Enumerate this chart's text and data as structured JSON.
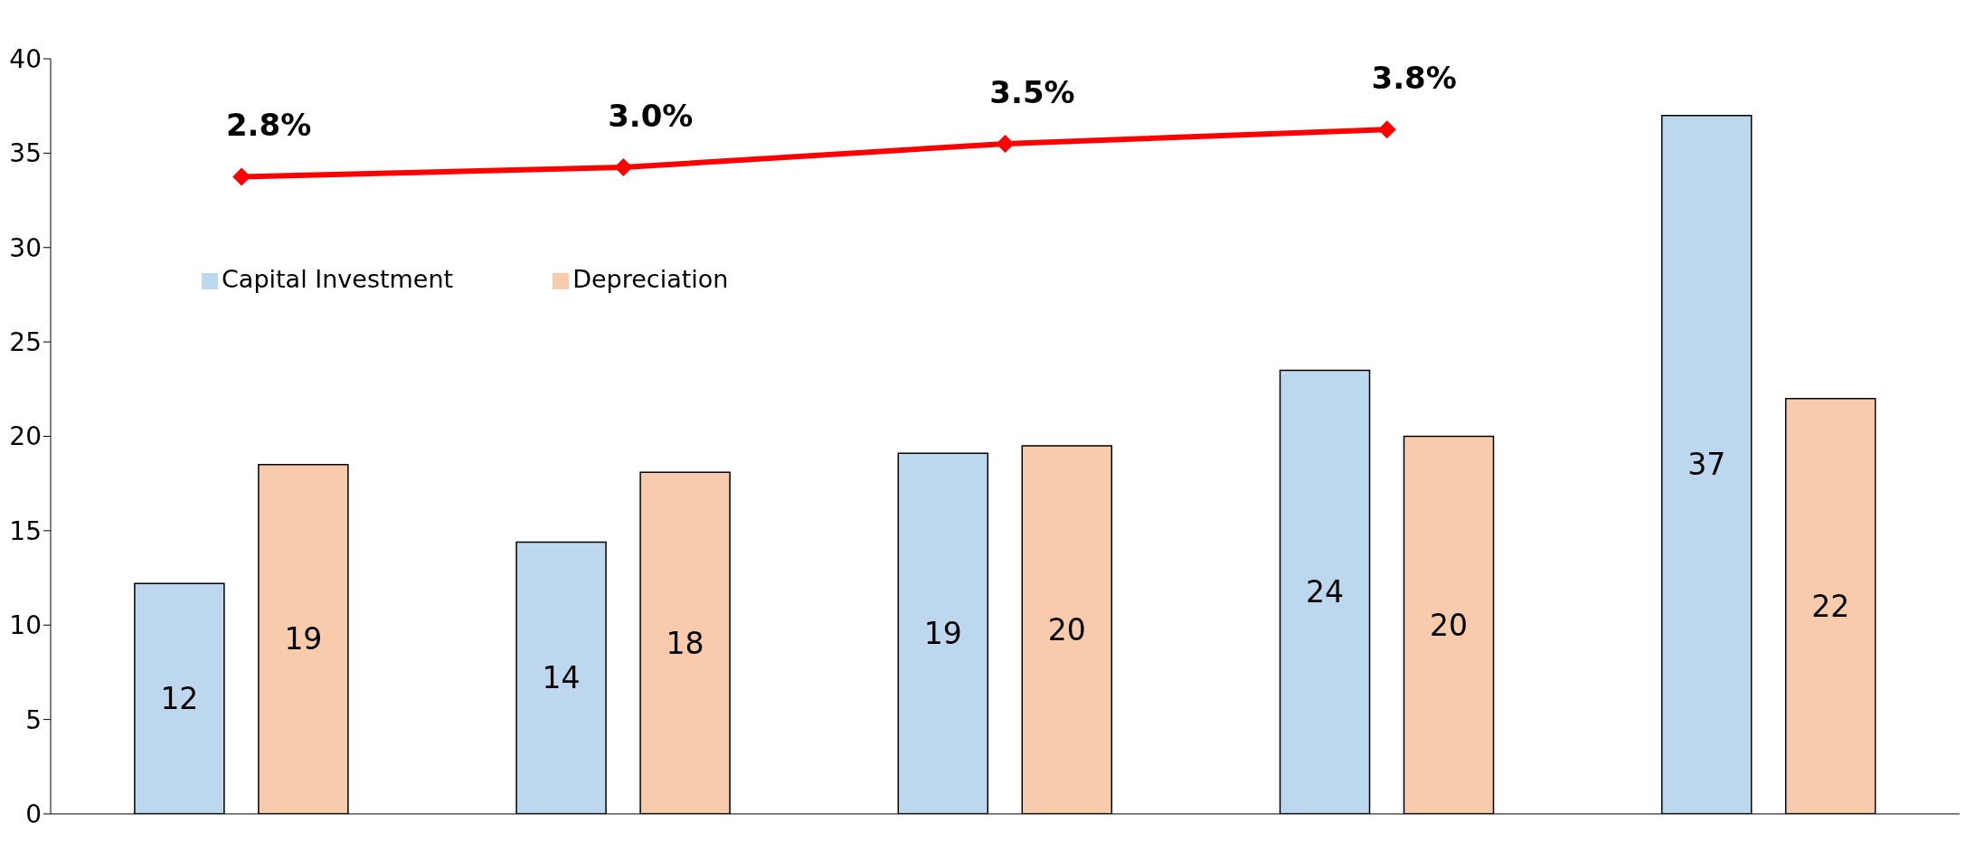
{
  "chart_data": {
    "type": "bar",
    "categories": [
      null,
      null,
      null,
      null,
      null
    ],
    "series": [
      {
        "name": "Capital Investment",
        "color": "#bdd7ee",
        "values": [
          12.2,
          14.4,
          19.1,
          23.5,
          37
        ],
        "value_labels": [
          "12",
          "14",
          "19",
          "24",
          "37"
        ]
      },
      {
        "name": "Depreciation",
        "color": "#f8cbad",
        "values": [
          18.5,
          18.1,
          19.5,
          20,
          22
        ],
        "value_labels": [
          "19",
          "18",
          "20",
          "20",
          "22"
        ]
      },
      {
        "type": "line",
        "axis": "y2",
        "color": "#ff0000",
        "values": [
          2.8,
          3.0,
          3.5,
          3.8,
          null
        ],
        "value_labels": [
          "2.8%",
          "3.0%",
          "3.5%",
          "3.8%",
          null
        ],
        "marker": "diamond"
      }
    ],
    "ylim": [
      0,
      40
    ],
    "yticks": [
      0,
      5,
      10,
      15,
      20,
      25,
      30,
      35,
      40
    ],
    "tick_labels": "y",
    "grid": false,
    "legend": "top left"
  }
}
